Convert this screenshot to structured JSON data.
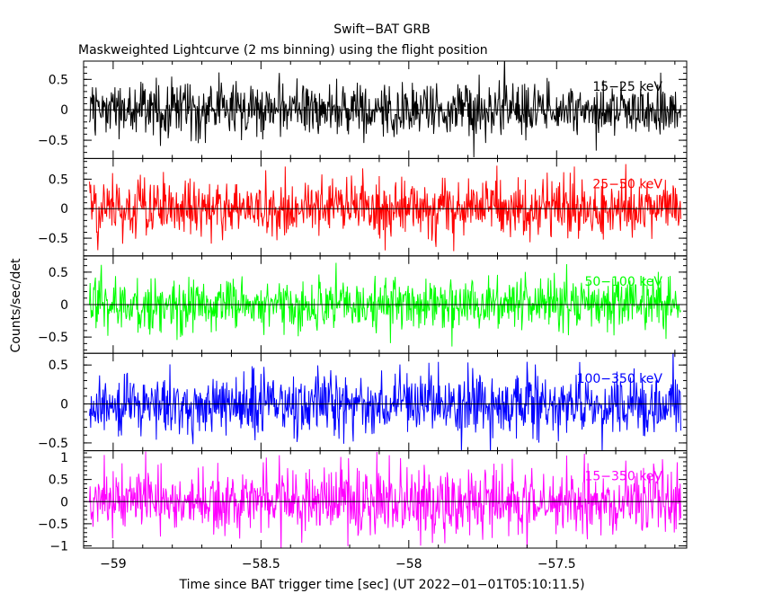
{
  "chart_data": {
    "type": "line",
    "title": "Swift−BAT GRB",
    "subtitle": "Maskweighted Lightcurve (2 ms binning) using the flight position",
    "xlabel": "Time since BAT trigger time [sec] (UT 2022−01−01T05:10:11.5)",
    "ylabel": "Counts/sec/det",
    "xlim": [
      -59.1,
      -57.06
    ],
    "x_start": -59.08,
    "x_end": -57.08,
    "bin_width": 0.002,
    "x_ticks": [
      -59,
      -58.5,
      -58,
      -57.5
    ],
    "x_tick_labels": [
      "−59",
      "−58.5",
      "−58",
      "−57.5"
    ],
    "panels": [
      {
        "name": "15−25 keV",
        "color": "#000000",
        "ylim": [
          -0.8,
          0.8
        ],
        "y_ticks": [
          -0.5,
          0,
          0.5
        ],
        "y_tick_labels": [
          "−0.5",
          "0",
          "0.5"
        ],
        "noise_sigma": 0.22,
        "min_dip": {
          "x": -57.78,
          "y": -0.78
        }
      },
      {
        "name": "25−50 keV",
        "color": "#ff0000",
        "ylim": [
          -0.8,
          0.85
        ],
        "y_ticks": [
          -0.5,
          0,
          0.5
        ],
        "y_tick_labels": [
          "−0.5",
          "0",
          "0.5"
        ],
        "noise_sigma": 0.24
      },
      {
        "name": "50−100 keV",
        "color": "#00ff00",
        "ylim": [
          -0.75,
          0.75
        ],
        "y_ticks": [
          -0.5,
          0,
          0.5
        ],
        "y_tick_labels": [
          "−0.5",
          "0",
          "0.5"
        ],
        "noise_sigma": 0.2
      },
      {
        "name": "100−350 keV",
        "color": "#0000ff",
        "ylim": [
          -0.6,
          0.65
        ],
        "y_ticks": [
          -0.5,
          0,
          0.5
        ],
        "y_tick_labels": [
          "−0.5",
          "0",
          "0.5"
        ],
        "noise_sigma": 0.2
      },
      {
        "name": "15−350 keV",
        "color": "#ff00ff",
        "ylim": [
          -1.05,
          1.15
        ],
        "y_ticks": [
          -1,
          -0.5,
          0,
          0.5,
          1
        ],
        "y_tick_labels": [
          "−1",
          "−0.5",
          "0",
          "0.5",
          "1"
        ],
        "noise_sigma": 0.38
      }
    ],
    "grid": false,
    "legend": "none"
  }
}
